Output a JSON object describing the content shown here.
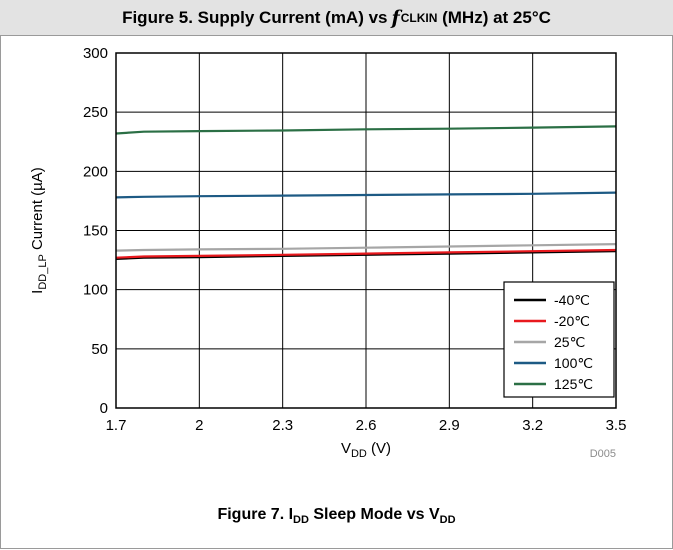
{
  "header": {
    "title_pre": "Figure 5. Supply Current (mA) vs",
    "title_f": "f",
    "title_sub": "CLKIN",
    "title_post": "(MHz) at 25°C"
  },
  "caption": {
    "pre": "Figure 7. I",
    "sub1": "DD",
    "mid": " Sleep Mode vs V",
    "sub2": "DD"
  },
  "figure_code": "D005",
  "chart_data": {
    "type": "line",
    "title": "Figure 7. IDD Sleep Mode vs VDD",
    "xlabel": "VDD (V)",
    "ylabel": "IDD_LP Current (µA)",
    "xlabel_main": "V",
    "xlabel_sub": "DD",
    "xlabel_unit": " (V)",
    "ylabel_main": "I",
    "ylabel_sub": "DD_LP",
    "ylabel_unit": " Current (µA)",
    "xlim": [
      1.7,
      3.5
    ],
    "ylim": [
      0,
      300
    ],
    "x_ticks": [
      "1.7",
      "2",
      "2.3",
      "2.6",
      "2.9",
      "3.2",
      "3.5"
    ],
    "y_ticks": [
      "0",
      "50",
      "100",
      "150",
      "200",
      "250",
      "300"
    ],
    "grid": true,
    "legend_position": "bottom-right",
    "series": [
      {
        "name": "-40℃",
        "color": "#000000",
        "x": [
          1.7,
          1.8,
          2.0,
          2.3,
          2.6,
          2.9,
          3.2,
          3.5
        ],
        "y": [
          126,
          127,
          127.5,
          128.5,
          129.5,
          130.5,
          131.5,
          132.5
        ]
      },
      {
        "name": "-20℃",
        "color": "#e8191e",
        "x": [
          1.7,
          1.8,
          2.0,
          2.3,
          2.6,
          2.9,
          3.2,
          3.5
        ],
        "y": [
          127,
          128,
          128.5,
          129.5,
          130.5,
          131.5,
          132.5,
          133.5
        ]
      },
      {
        "name": "25℃",
        "color": "#a6a6a6",
        "x": [
          1.7,
          1.8,
          2.0,
          2.3,
          2.6,
          2.9,
          3.2,
          3.5
        ],
        "y": [
          133,
          133.5,
          134,
          134.5,
          135.5,
          136.5,
          137.5,
          138.5
        ]
      },
      {
        "name": "100℃",
        "color": "#1d5a84",
        "x": [
          1.7,
          1.8,
          2.0,
          2.3,
          2.6,
          2.9,
          3.2,
          3.5
        ],
        "y": [
          178,
          178.5,
          179,
          179.5,
          180,
          180.5,
          181,
          182
        ]
      },
      {
        "name": "125℃",
        "color": "#2b6f45",
        "x": [
          1.7,
          1.8,
          2.0,
          2.3,
          2.6,
          2.9,
          3.2,
          3.5
        ],
        "y": [
          232,
          233.5,
          234,
          234.5,
          235.5,
          236,
          237,
          238
        ]
      }
    ]
  }
}
